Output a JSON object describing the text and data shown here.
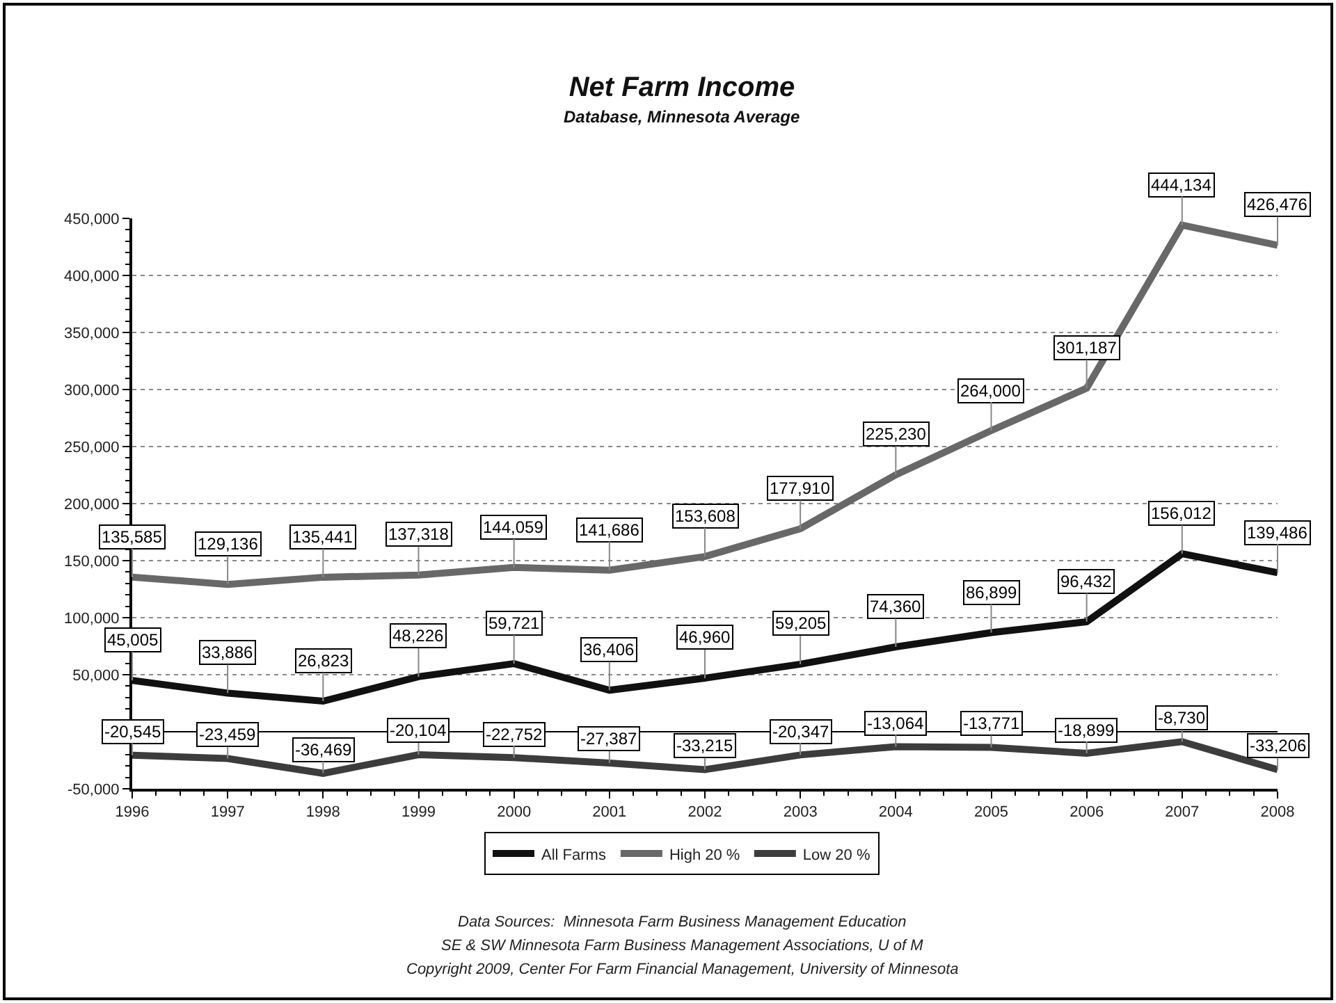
{
  "chart_data": {
    "type": "line",
    "title": "Net Farm Income",
    "subtitle": "Database, Minnesota Average",
    "x": [
      1996,
      1997,
      1998,
      1999,
      2000,
      2001,
      2002,
      2003,
      2004,
      2005,
      2006,
      2007,
      2008
    ],
    "xlim": [
      1996,
      2008
    ],
    "xticks": [
      1996,
      1997,
      1998,
      1999,
      2000,
      2001,
      2002,
      2003,
      2004,
      2005,
      2006,
      2007,
      2008
    ],
    "ylim": [
      -50000,
      450000
    ],
    "yticks": [
      {
        "value": -50000,
        "label": "-50,000"
      },
      {
        "value": 0,
        "label": null
      },
      {
        "value": 50000,
        "label": "50,000"
      },
      {
        "value": 100000,
        "label": "100,000"
      },
      {
        "value": 150000,
        "label": "150,000"
      },
      {
        "value": 200000,
        "label": "200,000"
      },
      {
        "value": 250000,
        "label": "250,000"
      },
      {
        "value": 300000,
        "label": "300,000"
      },
      {
        "value": 350000,
        "label": "350,000"
      },
      {
        "value": 400000,
        "label": "400,000"
      },
      {
        "value": 450000,
        "label": "450,000"
      }
    ],
    "series": [
      {
        "name": "All Farms",
        "color": "#111111",
        "values": [
          45005,
          33886,
          26823,
          48226,
          59721,
          36406,
          46960,
          59205,
          74360,
          86899,
          96432,
          156012,
          139486
        ],
        "value_labels": [
          "45,005",
          "33,886",
          "26,823",
          "48,226",
          "59,721",
          "36,406",
          "46,960",
          "59,205",
          "74,360",
          "86,899",
          "96,432",
          "156,012",
          "139,486"
        ]
      },
      {
        "name": "High 20 %",
        "color": "#686868",
        "values": [
          135585,
          129136,
          135441,
          137318,
          144059,
          141686,
          153608,
          177910,
          225230,
          264000,
          301187,
          444134,
          426476
        ],
        "value_labels": [
          "135,585",
          "129,136",
          "135,441",
          "137,318",
          "144,059",
          "141,686",
          "153,608",
          "177,910",
          "225,230",
          "264,000",
          "301,187",
          "444,134",
          "426,476"
        ]
      },
      {
        "name": "Low 20 %",
        "color": "#3c3c3c",
        "values": [
          -20545,
          -23459,
          -36469,
          -20104,
          -22752,
          -27387,
          -33215,
          -20347,
          -13064,
          -13771,
          -18899,
          -8730,
          -33206
        ],
        "value_labels": [
          "-20,545",
          "-23,459",
          "-36,469",
          "-20,104",
          "-22,752",
          "-27,387",
          "-33,215",
          "-20,347",
          "-13,064",
          "-13,771",
          "-18,899",
          "-8,730",
          "-33,206"
        ]
      }
    ],
    "grid": "y",
    "legend": "bottom",
    "line_style": "solid",
    "annotations": [
      "Data Sources:  Minnesota Farm Business Management Education",
      "SE & SW Minnesota Farm Business Management Associations, U of M",
      "Copyright 2009, Center For Farm Financial Management, University of Minnesota"
    ]
  }
}
